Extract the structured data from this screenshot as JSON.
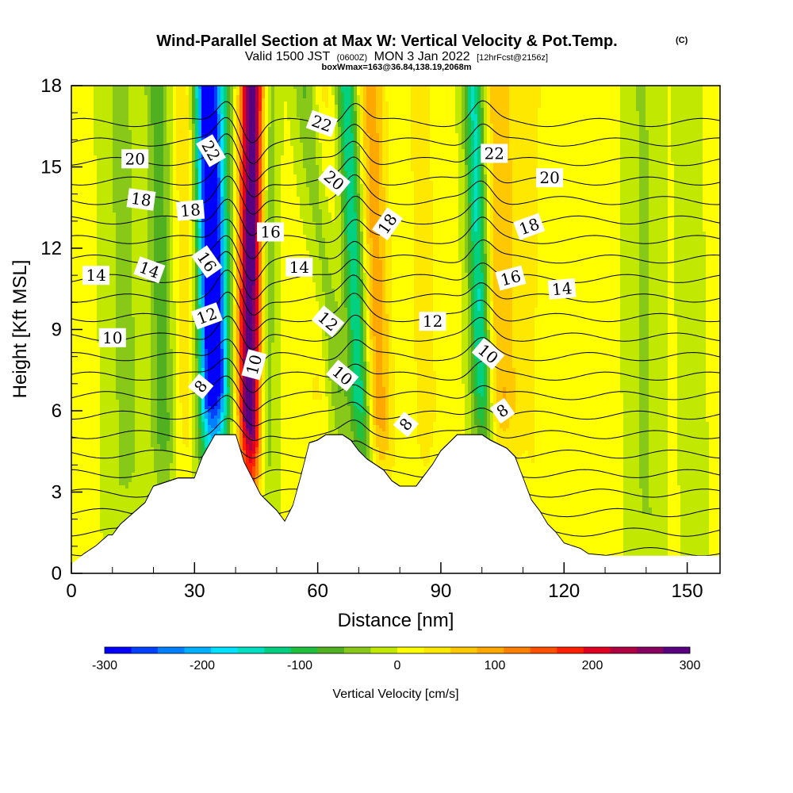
{
  "header": {
    "title": "Wind-Parallel Section at Max W: Vertical Velocity & Pot.Temp.",
    "copyright": "(C)",
    "valid_prefix": "Valid 1500 JST",
    "valid_utc": "(0600Z)",
    "valid_date": "MON 3 Jan 2022",
    "forecast": "[12hrFcst@2156z]",
    "box_info": "boxWmax=163@36.84,138.19,2068m"
  },
  "colors": {
    "scale": [
      "#0000ff",
      "#0040ff",
      "#0080ff",
      "#00b0ff",
      "#00e0ff",
      "#00e0c0",
      "#00d080",
      "#20c040",
      "#50b020",
      "#88c818",
      "#c0e800",
      "#ffff00",
      "#ffe800",
      "#ffc800",
      "#ffa800",
      "#ff8000",
      "#ff5000",
      "#ff2000",
      "#e00020",
      "#b00040",
      "#880060",
      "#580080"
    ],
    "terrain": "#ffffff",
    "contour": "#000000"
  },
  "chart_data": {
    "type": "heatmap",
    "xlabel": "Distance [nm]",
    "ylabel": "Height [Kft MSL]",
    "xlim": [
      0,
      158
    ],
    "ylim": [
      0,
      18
    ],
    "xticks": [
      0,
      30,
      60,
      90,
      120,
      150
    ],
    "yticks": [
      0,
      3,
      6,
      9,
      12,
      15,
      18
    ],
    "colorbar": {
      "label": "Vertical Velocity [cm/s]",
      "range": [
        -300,
        300
      ],
      "tick_values": [
        -300,
        -200,
        -100,
        0,
        100,
        200,
        300
      ]
    },
    "velocity_features": [
      {
        "x_bottom": 36,
        "x_top": 33,
        "amplitude": -280,
        "width": 3.2
      },
      {
        "x_bottom": 43,
        "x_top": 44,
        "amplitude": 300,
        "width": 3.0
      },
      {
        "x_bottom": 33,
        "x_top": 36,
        "amplitude": -90,
        "width": 4.5
      },
      {
        "x_bottom": 23,
        "x_top": 21,
        "amplitude": -75,
        "width": 2.8
      },
      {
        "x_bottom": 14,
        "x_top": 12,
        "amplitude": -40,
        "width": 4.5
      },
      {
        "x_bottom": 29,
        "x_top": 28,
        "amplitude": 55,
        "width": 3.0
      },
      {
        "x_bottom": 47,
        "x_top": 48,
        "amplitude": -70,
        "width": 2.2
      },
      {
        "x_bottom": 72,
        "x_top": 67,
        "amplitude": -140,
        "width": 2.5
      },
      {
        "x_bottom": 69,
        "x_top": 57,
        "amplitude": -70,
        "width": 3.0
      },
      {
        "x_bottom": 76,
        "x_top": 73,
        "amplitude": 90,
        "width": 3.2
      },
      {
        "x_bottom": 61,
        "x_top": 61,
        "amplitude": 35,
        "width": 3.5
      },
      {
        "x_bottom": 87,
        "x_top": 85,
        "amplitude": 40,
        "width": 3.0
      },
      {
        "x_bottom": 101,
        "x_top": 98,
        "amplitude": -150,
        "width": 2.4
      },
      {
        "x_bottom": 105,
        "x_top": 104,
        "amplitude": 70,
        "width": 3.5
      },
      {
        "x_bottom": 110,
        "x_top": 112,
        "amplitude": 25,
        "width": 6.0
      },
      {
        "x_bottom": 140,
        "x_top": 139,
        "amplitude": -35,
        "width": 4.0
      },
      {
        "x_bottom": 152,
        "x_top": 150,
        "amplitude": -20,
        "width": 3.0
      }
    ],
    "terrain_kft": [
      [
        0,
        0.35
      ],
      [
        3,
        0.7
      ],
      [
        6,
        1.0
      ],
      [
        9,
        1.4
      ],
      [
        10,
        1.4
      ],
      [
        12,
        1.8
      ],
      [
        15,
        2.2
      ],
      [
        18,
        2.6
      ],
      [
        20,
        3.2
      ],
      [
        22,
        3.3
      ],
      [
        26,
        3.5
      ],
      [
        30,
        3.5
      ],
      [
        32,
        4.3
      ],
      [
        35,
        5.1
      ],
      [
        40,
        5.1
      ],
      [
        42,
        4.1
      ],
      [
        44,
        3.5
      ],
      [
        46,
        2.9
      ],
      [
        48,
        2.6
      ],
      [
        50,
        2.3
      ],
      [
        52,
        1.9
      ],
      [
        54,
        2.5
      ],
      [
        56,
        3.6
      ],
      [
        58,
        4.8
      ],
      [
        60,
        4.9
      ],
      [
        62,
        5.1
      ],
      [
        66,
        5.1
      ],
      [
        68,
        4.9
      ],
      [
        70,
        4.5
      ],
      [
        72,
        4.2
      ],
      [
        74,
        4.0
      ],
      [
        76,
        3.8
      ],
      [
        78,
        3.4
      ],
      [
        80,
        3.2
      ],
      [
        84,
        3.2
      ],
      [
        86,
        3.6
      ],
      [
        88,
        4.0
      ],
      [
        90,
        4.5
      ],
      [
        92,
        4.8
      ],
      [
        94,
        5.1
      ],
      [
        100,
        5.1
      ],
      [
        102,
        4.9
      ],
      [
        106,
        4.6
      ],
      [
        108,
        4.3
      ],
      [
        110,
        3.5
      ],
      [
        112,
        2.7
      ],
      [
        114,
        2.3
      ],
      [
        116,
        1.8
      ],
      [
        118,
        1.5
      ],
      [
        120,
        1.1
      ],
      [
        122,
        1.0
      ],
      [
        124,
        0.9
      ],
      [
        126,
        0.7
      ],
      [
        130,
        0.65
      ],
      [
        158,
        0.65
      ]
    ],
    "theta_contours": {
      "levels": [
        4,
        5,
        6,
        7,
        8,
        9,
        10,
        11,
        12,
        13,
        14,
        15,
        16,
        17,
        18,
        19,
        20,
        21,
        22,
        23,
        24,
        25,
        26
      ],
      "labels": [
        {
          "text": "8",
          "x": 31.5,
          "y": 6.9,
          "angle": -50
        },
        {
          "text": "10",
          "x": 10,
          "y": 8.7,
          "angle": 0
        },
        {
          "text": "12",
          "x": 33,
          "y": 9.5,
          "angle": -20
        },
        {
          "text": "14",
          "x": 6,
          "y": 11.0,
          "angle": 0
        },
        {
          "text": "14",
          "x": 19,
          "y": 11.2,
          "angle": 20
        },
        {
          "text": "16",
          "x": 33,
          "y": 11.5,
          "angle": 55
        },
        {
          "text": "18",
          "x": 17,
          "y": 13.8,
          "angle": 8
        },
        {
          "text": "18",
          "x": 29,
          "y": 13.4,
          "angle": -5
        },
        {
          "text": "20",
          "x": 15.5,
          "y": 15.3,
          "angle": 0
        },
        {
          "text": "22",
          "x": 34,
          "y": 15.6,
          "angle": 60
        },
        {
          "text": "10",
          "x": 44.5,
          "y": 7.7,
          "angle": -75
        },
        {
          "text": "16",
          "x": 48.5,
          "y": 12.6,
          "angle": 0
        },
        {
          "text": "14",
          "x": 55.5,
          "y": 11.3,
          "angle": 0
        },
        {
          "text": "12",
          "x": 62.5,
          "y": 9.3,
          "angle": 40
        },
        {
          "text": "10",
          "x": 66,
          "y": 7.3,
          "angle": 40
        },
        {
          "text": "20",
          "x": 64,
          "y": 14.5,
          "angle": 40
        },
        {
          "text": "22",
          "x": 61,
          "y": 16.6,
          "angle": 20
        },
        {
          "text": "18",
          "x": 77,
          "y": 12.9,
          "angle": -55
        },
        {
          "text": "12",
          "x": 88,
          "y": 9.3,
          "angle": 0
        },
        {
          "text": "8",
          "x": 81.5,
          "y": 5.5,
          "angle": -50
        },
        {
          "text": "22",
          "x": 103,
          "y": 15.5,
          "angle": 0
        },
        {
          "text": "20",
          "x": 116.5,
          "y": 14.6,
          "angle": 0
        },
        {
          "text": "18",
          "x": 111.5,
          "y": 12.8,
          "angle": -20
        },
        {
          "text": "16",
          "x": 107,
          "y": 10.9,
          "angle": -15
        },
        {
          "text": "14",
          "x": 119.5,
          "y": 10.5,
          "angle": -5
        },
        {
          "text": "10",
          "x": 101.5,
          "y": 8.1,
          "angle": 40
        },
        {
          "text": "8",
          "x": 105,
          "y": 6.0,
          "angle": -35
        }
      ]
    }
  }
}
